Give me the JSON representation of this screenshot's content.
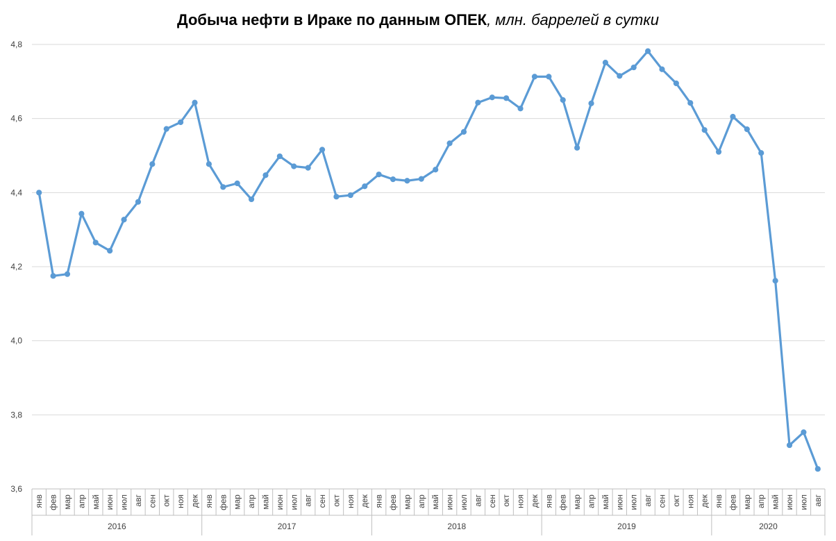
{
  "chart_data": {
    "type": "line",
    "title": "Добыча нефти в Ираке по данным ОПЕК",
    "subtitle": ", млн. баррелей в сутки",
    "ylim": [
      3.6,
      4.8
    ],
    "yticks": [
      "3,6",
      "3,8",
      "4,0",
      "4,2",
      "4,4",
      "4,6",
      "4,8"
    ],
    "ytick_values": [
      3.6,
      3.8,
      4.0,
      4.2,
      4.4,
      4.6,
      4.8
    ],
    "grid": true,
    "color": "#5B9BD5",
    "years": [
      {
        "label": "2016",
        "months": 12
      },
      {
        "label": "2017",
        "months": 12
      },
      {
        "label": "2018",
        "months": 12
      },
      {
        "label": "2019",
        "months": 12
      },
      {
        "label": "2020",
        "months": 8
      }
    ],
    "categories": [
      "янв",
      "фев",
      "мар",
      "апр",
      "май",
      "июн",
      "июл",
      "авг",
      "сен",
      "окт",
      "ноя",
      "дек",
      "янв",
      "фев",
      "мар",
      "апр",
      "май",
      "июн",
      "июл",
      "авг",
      "сен",
      "окт",
      "ноя",
      "дек",
      "янв",
      "фев",
      "мар",
      "апр",
      "май",
      "июн",
      "июл",
      "авг",
      "сен",
      "окт",
      "ноя",
      "дек",
      "янв",
      "фев",
      "мар",
      "апр",
      "май",
      "июн",
      "июл",
      "авг",
      "сен",
      "окт",
      "ноя",
      "дек",
      "янв",
      "фев",
      "мар",
      "апр",
      "май",
      "июн",
      "июл",
      "авг"
    ],
    "series": [
      {
        "values": [
          4.4,
          4.175,
          4.18,
          4.343,
          4.265,
          4.243,
          4.327,
          4.375,
          4.477,
          4.572,
          4.59,
          4.643,
          4.477,
          4.415,
          4.425,
          4.382,
          4.447,
          4.498,
          4.471,
          4.467,
          4.516,
          4.389,
          4.393,
          4.417,
          4.449,
          4.436,
          4.432,
          4.437,
          4.462,
          4.533,
          4.564,
          4.643,
          4.657,
          4.655,
          4.627,
          4.713,
          4.713,
          4.65,
          4.521,
          4.641,
          4.751,
          4.715,
          4.738,
          4.782,
          4.733,
          4.695,
          4.642,
          4.569,
          4.51,
          4.605,
          4.571,
          4.507,
          4.162,
          3.718,
          3.753,
          3.654
        ]
      }
    ]
  }
}
